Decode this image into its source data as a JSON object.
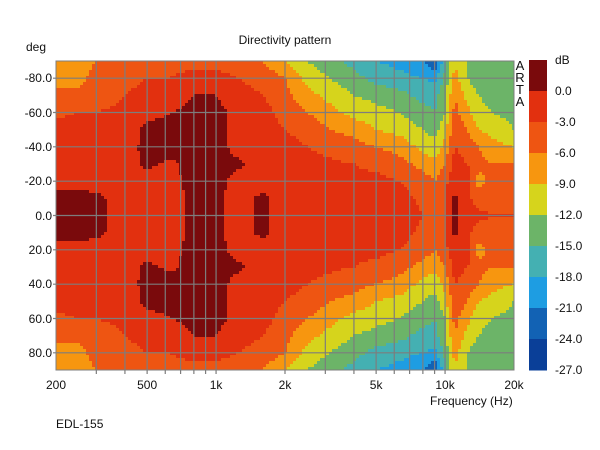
{
  "chart_data": {
    "type": "heatmap",
    "title": "Directivity pattern",
    "ylabel": "deg",
    "xlabel": "Frequency (Hz)",
    "model": "EDL-155",
    "watermark": "ARTA",
    "x_scale": "log",
    "xlim": [
      200,
      20000
    ],
    "ylim": [
      -90,
      90
    ],
    "x_ticks": [
      {
        "v": 200,
        "label": "200"
      },
      {
        "v": 500,
        "label": "500"
      },
      {
        "v": 1000,
        "label": "1k"
      },
      {
        "v": 2000,
        "label": "2k"
      },
      {
        "v": 5000,
        "label": "5k"
      },
      {
        "v": 10000,
        "label": "10k"
      },
      {
        "v": 20000,
        "label": "20k"
      }
    ],
    "y_ticks": [
      {
        "v": -80,
        "label": "-80.0"
      },
      {
        "v": -60,
        "label": "-60.0"
      },
      {
        "v": -40,
        "label": "-40.0"
      },
      {
        "v": -20,
        "label": "-20.0"
      },
      {
        "v": 0,
        "label": "0.0"
      },
      {
        "v": 20,
        "label": "20.0"
      },
      {
        "v": 40,
        "label": "40.0"
      },
      {
        "v": 60,
        "label": "60.0"
      },
      {
        "v": 80,
        "label": "80.0"
      }
    ],
    "grid": true,
    "colorbar": {
      "unit": "dB",
      "labels": [
        "0.0",
        "-3.0",
        "-6.0",
        "-9.0",
        "-12.0",
        "-15.0",
        "-18.0",
        "-21.0",
        "-24.0",
        "-27.0"
      ],
      "thresholds": [
        0,
        -3,
        -6,
        -9,
        -12,
        -15,
        -18,
        -21,
        -24
      ],
      "colors": [
        "#7a0a0c",
        "#e2300f",
        "#ee5512",
        "#f7960f",
        "#d6d41c",
        "#6cb468",
        "#44b0b2",
        "#1e9de2",
        "#1262b4",
        "#0a3f98"
      ]
    },
    "symmetric_about_zero": true,
    "angles_abs": [
      0,
      10,
      20,
      30,
      40,
      50,
      60,
      70,
      80,
      90
    ],
    "frequencies": [
      200,
      250,
      300,
      400,
      500,
      630,
      800,
      1000,
      1250,
      1600,
      2000,
      2500,
      3150,
      4000,
      5000,
      6300,
      8000,
      9000,
      10000,
      11000,
      12500,
      14000,
      16000,
      20000
    ],
    "values_db": [
      [
        1,
        1,
        -1,
        -2,
        -2,
        -2,
        -3.5,
        -5,
        -7,
        -6
      ],
      [
        1,
        1,
        -1,
        -2,
        -2,
        -2,
        -3,
        -5,
        -7,
        -7
      ],
      [
        0.5,
        0.5,
        -1,
        -2,
        -2,
        -2,
        -3,
        -4,
        -5,
        -6
      ],
      [
        -1,
        -1,
        -1,
        -1,
        -1.5,
        -2,
        -2.5,
        -3,
        -4,
        -5
      ],
      [
        -1,
        -1,
        -1,
        0.5,
        1,
        1,
        -1,
        -2,
        -3,
        -4
      ],
      [
        -1,
        -1,
        -1,
        -0.5,
        1,
        1,
        0,
        -2,
        -3,
        -4
      ],
      [
        0.5,
        0.5,
        1,
        1,
        1,
        1,
        1,
        0,
        -2,
        -4
      ],
      [
        0.5,
        0.5,
        1,
        1,
        1,
        1,
        1,
        0,
        -2,
        -4
      ],
      [
        -1,
        -1,
        -1,
        0.5,
        -1,
        -1,
        -1,
        -2,
        -3,
        -5
      ],
      [
        0.5,
        0.5,
        -1,
        -1,
        -1.5,
        -2,
        -2,
        -3,
        -4,
        -6
      ],
      [
        -1,
        -1,
        -1,
        -1.5,
        -2,
        -3,
        -4,
        -5,
        -6,
        -9
      ],
      [
        -1,
        -1,
        -1,
        -2,
        -3,
        -4,
        -6,
        -8,
        -10,
        -12
      ],
      [
        -1,
        -1,
        -1.5,
        -2.5,
        -4,
        -6,
        -8,
        -10,
        -12,
        -14
      ],
      [
        -1,
        -1,
        -2,
        -3,
        -5,
        -7,
        -10,
        -12,
        -14,
        -16
      ],
      [
        -1.5,
        -1.5,
        -2,
        -4,
        -6,
        -9,
        -11,
        -13,
        -16,
        -18
      ],
      [
        -2,
        -2,
        -3,
        -5,
        -7,
        -10,
        -12,
        -14,
        -17,
        -19
      ],
      [
        -3,
        -3.5,
        -4.5,
        -7,
        -10,
        -12,
        -14,
        -16,
        -18,
        -21
      ],
      [
        -4,
        -4.5,
        -6,
        -8,
        -11,
        -13,
        -15,
        -16,
        -19,
        -24
      ],
      [
        -3,
        -3,
        -4,
        -6,
        -8,
        -10,
        -12,
        -13,
        -14,
        -16
      ],
      [
        0.5,
        0.5,
        -1,
        -2,
        -3,
        -4,
        -5,
        -6,
        -8,
        -9
      ],
      [
        -1,
        -2,
        -1.5,
        -3,
        -4,
        -6,
        -8,
        -10,
        -12,
        -12
      ],
      [
        -2,
        -5,
        -7,
        -5,
        -6,
        -9,
        -11,
        -12,
        -14,
        -14
      ],
      [
        -3,
        -4,
        -5,
        -6,
        -8,
        -10,
        -12,
        -13,
        -14,
        -15
      ],
      [
        -3,
        -3,
        -4,
        -6,
        -9,
        -12,
        -13,
        -13,
        -13,
        -13
      ]
    ]
  }
}
